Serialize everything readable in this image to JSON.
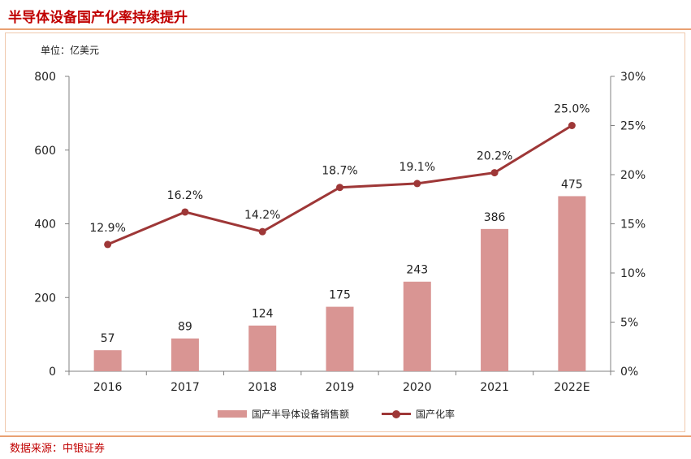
{
  "header": {
    "title": "半导体设备国产化率持续提升"
  },
  "footer": {
    "source": "数据来源：中银证券"
  },
  "colors": {
    "bar": "#d99593",
    "line": "#9e3737",
    "title": "#c00000",
    "border": "#e9a072"
  },
  "chart_data": {
    "type": "bar",
    "unit_label": "单位：亿美元",
    "categories": [
      "2016",
      "2017",
      "2018",
      "2019",
      "2020",
      "2021",
      "2022E"
    ],
    "series": [
      {
        "name": "国产半导体设备销售额",
        "type": "bar",
        "axis": "left",
        "values": [
          57,
          89,
          124,
          175,
          243,
          386,
          475
        ],
        "labels": [
          "57",
          "89",
          "124",
          "175",
          "243",
          "386",
          "475"
        ]
      },
      {
        "name": "国产化率",
        "type": "line",
        "axis": "right",
        "values": [
          12.9,
          16.2,
          14.2,
          18.7,
          19.1,
          20.2,
          25.0
        ],
        "labels": [
          "12.9%",
          "16.2%",
          "14.2%",
          "18.7%",
          "19.1%",
          "20.2%",
          "25.0%"
        ]
      }
    ],
    "y_left": {
      "range": [
        0,
        800
      ],
      "ticks": [
        "0",
        "200",
        "400",
        "600",
        "800"
      ]
    },
    "y_right": {
      "range": [
        0,
        30
      ],
      "ticks": [
        "0%",
        "5%",
        "10%",
        "15%",
        "20%",
        "25%",
        "30%"
      ]
    },
    "grid": false,
    "legend_position": "bottom"
  }
}
